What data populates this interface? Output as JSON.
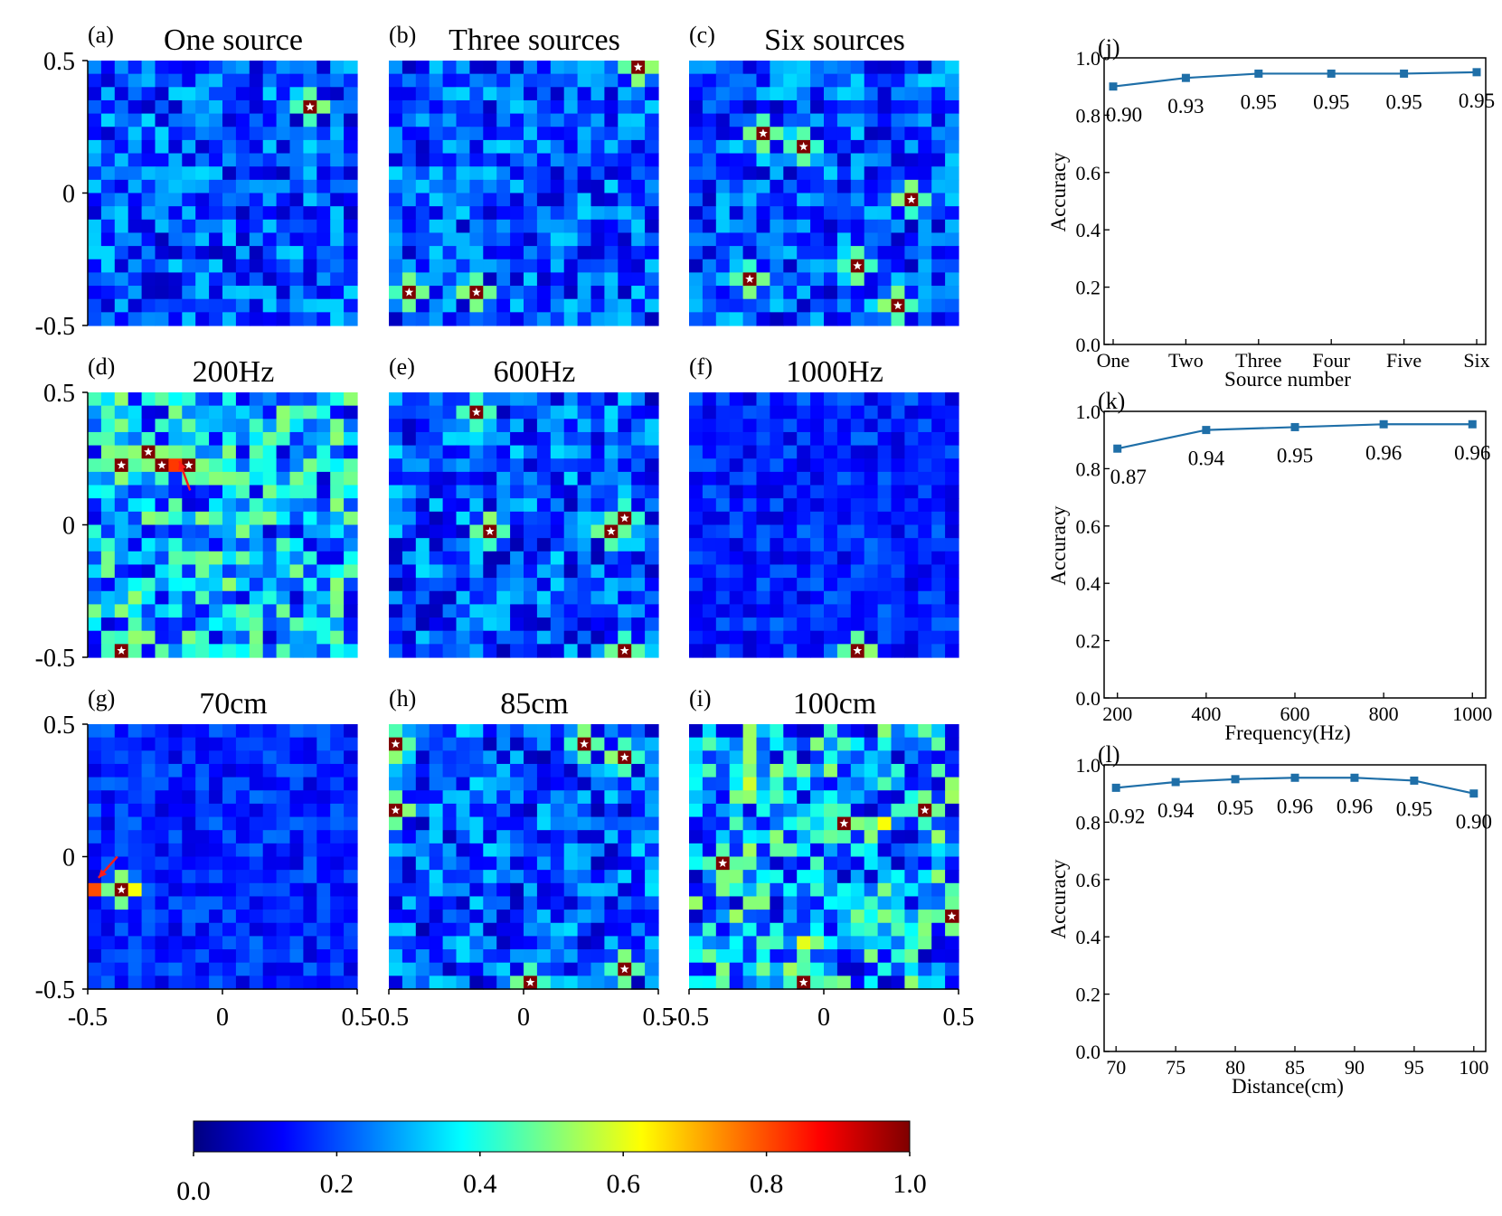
{
  "colors": {
    "line": "#1f6fa8",
    "star": "#ffffff",
    "colormap": [
      "#00007f",
      "#0000ff",
      "#007fff",
      "#00ffff",
      "#7fff7f",
      "#ffff00",
      "#ff7f00",
      "#ff0000",
      "#7f0000"
    ]
  },
  "icons": {
    "source_marker": "star-icon",
    "annotation": "arrow-icon"
  },
  "chart_data": [
    {
      "id": "a",
      "type": "heatmap",
      "panel_label": "(a)",
      "title": "One source",
      "grid": 20,
      "extent": [
        -0.5,
        0.5
      ],
      "base_level": 0.2,
      "background_variation": 0.14,
      "xticks": [],
      "yticks": [
        "-0.5",
        "0",
        "0.5"
      ],
      "sources": [
        [
          0.3,
          0.31
        ]
      ],
      "arrows": []
    },
    {
      "id": "b",
      "type": "heatmap",
      "panel_label": "(b)",
      "title": "Three sources",
      "grid": 20,
      "extent": [
        -0.5,
        0.5
      ],
      "base_level": 0.2,
      "background_variation": 0.14,
      "xticks": [],
      "yticks": [],
      "sources": [
        [
          0.42,
          0.45
        ],
        [
          -0.43,
          -0.39
        ],
        [
          -0.2,
          -0.35
        ]
      ],
      "arrows": []
    },
    {
      "id": "c",
      "type": "heatmap",
      "panel_label": "(c)",
      "title": "Six sources",
      "grid": 20,
      "extent": [
        -0.5,
        0.5
      ],
      "base_level": 0.2,
      "background_variation": 0.14,
      "xticks": [],
      "yticks": [],
      "sources": [
        [
          -0.25,
          0.22
        ],
        [
          -0.07,
          0.17
        ],
        [
          0.3,
          -0.01
        ],
        [
          0.1,
          -0.25
        ],
        [
          -0.26,
          -0.34
        ],
        [
          0.25,
          -0.43
        ]
      ],
      "arrows": []
    },
    {
      "id": "d",
      "type": "heatmap",
      "panel_label": "(d)",
      "title": "200Hz",
      "grid": 20,
      "extent": [
        -0.5,
        0.5
      ],
      "base_level": 0.3,
      "background_variation": 0.22,
      "xticks": [],
      "yticks": [
        "-0.5",
        "0",
        "0.5"
      ],
      "sources": [
        [
          -0.37,
          0.25
        ],
        [
          -0.28,
          0.3
        ],
        [
          -0.23,
          0.25
        ],
        [
          -0.14,
          0.25
        ],
        [
          -0.37,
          -0.45
        ]
      ],
      "hot_cells": [
        [
          -0.18,
          0.25,
          0.82
        ]
      ],
      "arrows": [
        [
          -0.12,
          0.13,
          -0.16,
          0.24
        ]
      ]
    },
    {
      "id": "e",
      "type": "heatmap",
      "panel_label": "(e)",
      "title": "600Hz",
      "grid": 20,
      "extent": [
        -0.5,
        0.5
      ],
      "base_level": 0.2,
      "background_variation": 0.15,
      "xticks": [],
      "yticks": [],
      "sources": [
        [
          -0.17,
          0.4
        ],
        [
          -0.12,
          -0.03
        ],
        [
          0.38,
          0.02
        ],
        [
          0.34,
          -0.03
        ],
        [
          0.38,
          -0.45
        ]
      ],
      "arrows": []
    },
    {
      "id": "f",
      "type": "heatmap",
      "panel_label": "(f)",
      "title": "1000Hz",
      "grid": 20,
      "extent": [
        -0.5,
        0.5
      ],
      "base_level": 0.16,
      "background_variation": 0.08,
      "xticks": [],
      "yticks": [],
      "sources": [
        [
          0.13,
          -0.45
        ]
      ],
      "arrows": []
    },
    {
      "id": "g",
      "type": "heatmap",
      "panel_label": "(g)",
      "title": "70cm",
      "grid": 20,
      "extent": [
        -0.5,
        0.5
      ],
      "base_level": 0.16,
      "background_variation": 0.08,
      "xticks": [
        "-0.5",
        "0",
        "0.5"
      ],
      "yticks": [
        "-0.5",
        "0",
        "0.5"
      ],
      "sources": [
        [
          -0.38,
          -0.12
        ]
      ],
      "hot_cells": [
        [
          -0.48,
          -0.12,
          0.8
        ],
        [
          -0.33,
          -0.12,
          0.62
        ]
      ],
      "arrows": [
        [
          -0.39,
          0.0,
          -0.46,
          -0.08
        ]
      ]
    },
    {
      "id": "h",
      "type": "heatmap",
      "panel_label": "(h)",
      "title": "85cm",
      "grid": 20,
      "extent": [
        -0.5,
        0.5
      ],
      "base_level": 0.2,
      "background_variation": 0.15,
      "xticks": [
        "-0.5",
        "0",
        "0.5"
      ],
      "yticks": [],
      "sources": [
        [
          -0.47,
          0.44
        ],
        [
          0.22,
          0.44
        ],
        [
          0.38,
          0.39
        ],
        [
          -0.47,
          0.16
        ],
        [
          0.02,
          -0.45
        ],
        [
          0.38,
          -0.4
        ]
      ],
      "arrows": []
    },
    {
      "id": "i",
      "type": "heatmap",
      "panel_label": "(i)",
      "title": "100cm",
      "grid": 20,
      "extent": [
        -0.5,
        0.5
      ],
      "base_level": 0.3,
      "background_variation": 0.24,
      "xticks": [
        "-0.5",
        "0",
        "0.5"
      ],
      "yticks": [],
      "sources": [
        [
          0.38,
          0.2
        ],
        [
          0.08,
          0.11
        ],
        [
          -0.37,
          -0.04
        ],
        [
          0.45,
          -0.22
        ],
        [
          -0.07,
          -0.45
        ]
      ],
      "hot_cells": [
        [
          -0.28,
          0.29,
          0.58
        ],
        [
          0.22,
          0.11,
          0.62
        ],
        [
          0.43,
          -0.05,
          0.52
        ],
        [
          -0.07,
          -0.3,
          0.6
        ]
      ],
      "arrows": []
    },
    {
      "id": "colorbar",
      "type": "heatmap",
      "role": "colorbar",
      "range": [
        0.0,
        1.0
      ],
      "ticks": [
        "0.0",
        "0.2",
        "0.4",
        "0.6",
        "0.8",
        "1.0"
      ]
    },
    {
      "id": "j",
      "type": "line",
      "panel_label": "(j)",
      "xlabel": "Source number",
      "ylabel": "Accuracy",
      "ylim": [
        0.0,
        1.0
      ],
      "yticks": [
        "0.0",
        "0.2",
        "0.4",
        "0.6",
        "0.8",
        "1.0"
      ],
      "categories": [
        "One",
        "Two",
        "Three",
        "Four",
        "Five",
        "Six"
      ],
      "values": [
        0.9,
        0.93,
        0.945,
        0.945,
        0.945,
        0.95
      ],
      "labels": [
        "0.90",
        "0.93",
        "0.95",
        "0.95",
        "0.95",
        "0.95"
      ]
    },
    {
      "id": "k",
      "type": "line",
      "panel_label": "(k)",
      "xlabel": "Frequency(Hz)",
      "ylabel": "Accuracy",
      "ylim": [
        0.0,
        1.0
      ],
      "xlim": [
        170,
        1030
      ],
      "yticks": [
        "0.0",
        "0.2",
        "0.4",
        "0.6",
        "0.8",
        "1.0"
      ],
      "xticks": [
        200,
        400,
        600,
        800,
        1000
      ],
      "x": [
        200,
        400,
        600,
        800,
        1000
      ],
      "values": [
        0.87,
        0.935,
        0.945,
        0.955,
        0.955
      ],
      "labels": [
        "0.87",
        "0.94",
        "0.95",
        "0.96",
        "0.96"
      ]
    },
    {
      "id": "l",
      "type": "line",
      "panel_label": "(l)",
      "xlabel": "Distance(cm)",
      "ylabel": "Accuracy",
      "ylim": [
        0.0,
        1.0
      ],
      "xlim": [
        69,
        101
      ],
      "yticks": [
        "0.0",
        "0.2",
        "0.4",
        "0.6",
        "0.8",
        "1.0"
      ],
      "xticks": [
        70,
        75,
        80,
        85,
        90,
        95,
        100
      ],
      "x": [
        70,
        75,
        80,
        85,
        90,
        95,
        100
      ],
      "values": [
        0.92,
        0.94,
        0.95,
        0.955,
        0.955,
        0.945,
        0.9
      ],
      "labels": [
        "0.92",
        "0.94",
        "0.95",
        "0.96",
        "0.96",
        "0.95",
        "0.90"
      ]
    }
  ]
}
